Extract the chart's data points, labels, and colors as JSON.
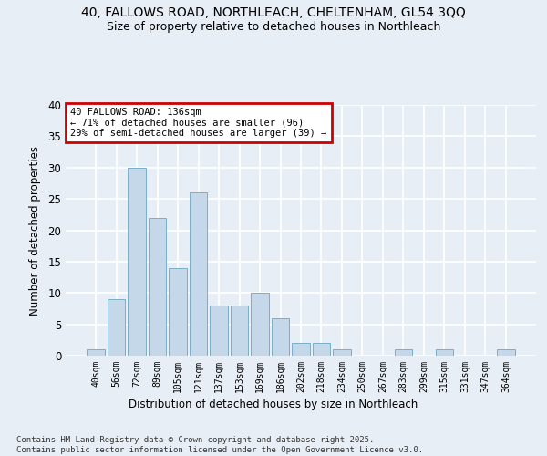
{
  "title_line1": "40, FALLOWS ROAD, NORTHLEACH, CHELTENHAM, GL54 3QQ",
  "title_line2": "Size of property relative to detached houses in Northleach",
  "xlabel": "Distribution of detached houses by size in Northleach",
  "ylabel": "Number of detached properties",
  "categories": [
    "40sqm",
    "56sqm",
    "72sqm",
    "89sqm",
    "105sqm",
    "121sqm",
    "137sqm",
    "153sqm",
    "169sqm",
    "186sqm",
    "202sqm",
    "218sqm",
    "234sqm",
    "250sqm",
    "267sqm",
    "283sqm",
    "299sqm",
    "315sqm",
    "331sqm",
    "347sqm",
    "364sqm"
  ],
  "values": [
    1,
    9,
    30,
    22,
    14,
    26,
    8,
    8,
    10,
    6,
    2,
    2,
    1,
    0,
    0,
    1,
    0,
    1,
    0,
    0,
    1
  ],
  "bar_color": "#c5d8ea",
  "bar_edge_color": "#7aafc8",
  "annotation_text": "40 FALLOWS ROAD: 136sqm\n← 71% of detached houses are smaller (96)\n29% of semi-detached houses are larger (39) →",
  "annotation_box_facecolor": "#ffffff",
  "annotation_box_edgecolor": "#cc0000",
  "ylim": [
    0,
    40
  ],
  "yticks": [
    0,
    5,
    10,
    15,
    20,
    25,
    30,
    35,
    40
  ],
  "bg_color": "#e8eef5",
  "grid_color": "#ffffff",
  "footnote_line1": "Contains HM Land Registry data © Crown copyright and database right 2025.",
  "footnote_line2": "Contains public sector information licensed under the Open Government Licence v3.0."
}
